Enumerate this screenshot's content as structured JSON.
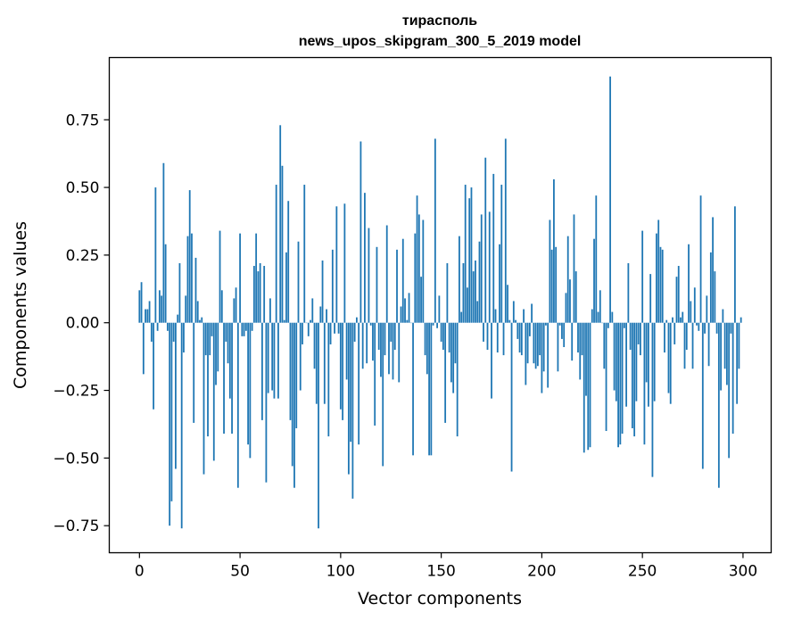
{
  "chart_data": {
    "type": "bar",
    "title": "тирасполь",
    "subtitle": "news_upos_skipgram_300_5_2019 model",
    "xlabel": "Vector components",
    "ylabel": "Components values",
    "xlim": [
      -15,
      314
    ],
    "ylim": [
      -0.85,
      0.98
    ],
    "xticks": [
      0,
      50,
      100,
      150,
      200,
      250,
      300
    ],
    "xtick_labels": [
      "0",
      "50",
      "100",
      "150",
      "200",
      "250",
      "300"
    ],
    "yticks": [
      0.75,
      0.5,
      0.25,
      0.0,
      -0.25,
      -0.5,
      -0.75
    ],
    "ytick_labels": [
      "0.75",
      "0.50",
      "0.25",
      "0.00",
      "−0.25",
      "−0.50",
      "−0.75"
    ],
    "grid": false,
    "bar_color": "#1f77b4",
    "x_start": 0,
    "values": [
      0.12,
      0.15,
      -0.19,
      0.05,
      0.05,
      0.08,
      -0.07,
      -0.32,
      0.5,
      -0.03,
      0.12,
      0.1,
      0.59,
      0.29,
      -0.03,
      -0.75,
      -0.66,
      -0.07,
      -0.54,
      0.03,
      0.22,
      -0.76,
      -0.11,
      0.1,
      0.32,
      0.49,
      0.33,
      -0.37,
      0.24,
      0.08,
      0.01,
      0.02,
      -0.56,
      -0.12,
      -0.42,
      -0.12,
      -0.05,
      -0.51,
      -0.23,
      -0.18,
      0.34,
      0.12,
      -0.41,
      -0.07,
      -0.15,
      -0.28,
      -0.41,
      0.09,
      0.13,
      -0.61,
      0.33,
      -0.05,
      -0.05,
      -0.03,
      -0.45,
      -0.5,
      -0.03,
      0.21,
      0.33,
      0.19,
      0.22,
      -0.36,
      0.21,
      -0.59,
      -0.26,
      0.09,
      -0.25,
      -0.28,
      0.51,
      -0.28,
      0.73,
      0.58,
      0.01,
      0.26,
      0.45,
      -0.36,
      -0.53,
      -0.61,
      -0.39,
      0.3,
      -0.25,
      -0.08,
      0.51,
      0.0,
      -0.05,
      0.01,
      0.09,
      -0.17,
      -0.3,
      -0.76,
      0.06,
      0.23,
      -0.3,
      0.05,
      -0.42,
      -0.08,
      0.27,
      -0.04,
      0.43,
      -0.04,
      -0.32,
      -0.36,
      0.44,
      -0.21,
      -0.56,
      -0.44,
      -0.65,
      -0.07,
      0.02,
      -0.45,
      0.67,
      -0.17,
      0.48,
      -0.15,
      0.35,
      -0.01,
      -0.14,
      -0.38,
      0.28,
      -0.1,
      -0.2,
      -0.53,
      -0.12,
      0.36,
      -0.19,
      -0.07,
      -0.21,
      -0.1,
      0.27,
      -0.22,
      0.06,
      0.31,
      0.09,
      0.01,
      0.11,
      0.0,
      -0.49,
      0.33,
      0.47,
      0.4,
      0.17,
      0.38,
      -0.12,
      -0.19,
      -0.49,
      -0.49,
      -0.01,
      0.68,
      -0.02,
      0.1,
      -0.07,
      -0.1,
      -0.37,
      0.22,
      -0.11,
      -0.22,
      -0.26,
      -0.15,
      -0.42,
      0.32,
      0.04,
      0.22,
      0.51,
      0.13,
      0.46,
      0.5,
      0.19,
      0.23,
      0.08,
      0.3,
      0.4,
      -0.07,
      0.61,
      -0.1,
      0.41,
      -0.28,
      0.55,
      0.05,
      -0.11,
      0.29,
      0.51,
      -0.12,
      0.68,
      0.14,
      0.01,
      -0.55,
      0.08,
      0.01,
      -0.06,
      -0.11,
      -0.12,
      0.05,
      -0.23,
      -0.15,
      -0.05,
      0.07,
      -0.15,
      -0.17,
      -0.16,
      -0.12,
      -0.26,
      -0.18,
      -0.01,
      -0.24,
      0.38,
      0.27,
      0.53,
      0.28,
      -0.18,
      -0.01,
      -0.06,
      -0.09,
      0.11,
      0.32,
      0.16,
      -0.14,
      0.4,
      0.19,
      -0.11,
      -0.21,
      -0.12,
      -0.48,
      -0.27,
      -0.47,
      -0.46,
      0.05,
      0.31,
      0.47,
      0.04,
      0.12,
      0.0,
      -0.17,
      -0.4,
      -0.02,
      0.91,
      0.04,
      -0.25,
      -0.29,
      -0.46,
      -0.45,
      -0.41,
      -0.02,
      -0.31,
      0.22,
      -0.1,
      -0.39,
      -0.42,
      -0.29,
      -0.08,
      -0.12,
      0.34,
      -0.45,
      -0.22,
      -0.31,
      0.18,
      -0.57,
      -0.29,
      0.33,
      0.38,
      0.28,
      0.27,
      -0.11,
      0.01,
      -0.26,
      -0.3,
      0.02,
      -0.08,
      0.17,
      0.21,
      0.02,
      0.04,
      -0.17,
      -0.1,
      0.29,
      0.08,
      -0.17,
      0.13,
      -0.01,
      -0.03,
      0.47,
      -0.54,
      -0.04,
      0.1,
      -0.16,
      0.26,
      0.39,
      0.19,
      -0.04,
      -0.61,
      -0.25,
      0.05,
      -0.17,
      -0.23,
      -0.5,
      -0.04,
      -0.41,
      0.43,
      -0.3,
      -0.17,
      0.02
    ]
  }
}
